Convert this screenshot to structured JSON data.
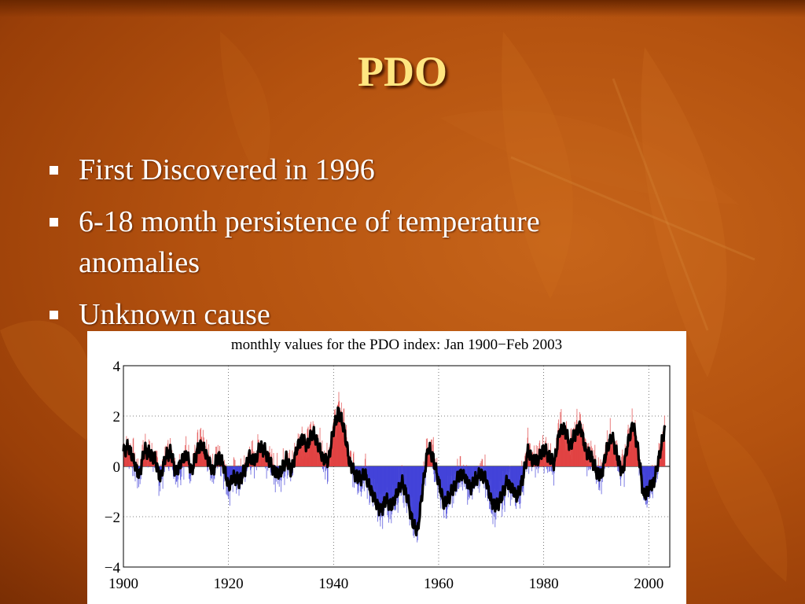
{
  "slide": {
    "title": "PDO",
    "bullets": [
      "First Discovered in 1996",
      "6-18 month persistence of temperature anomalies",
      "Unknown cause"
    ]
  },
  "colors": {
    "title": "#ffe680",
    "text": "#ffffff",
    "background": "#b4520f",
    "positive_fill": "#e04040",
    "negative_fill": "#4040d8",
    "smoothed_line": "#000000"
  },
  "chart_data": {
    "type": "area",
    "title": "monthly values for the PDO index: Jan 1900−Feb 2003",
    "xlabel": "",
    "ylabel": "",
    "xlim": [
      1900,
      2004
    ],
    "ylim": [
      -4,
      4
    ],
    "x_ticks": [
      1900,
      1920,
      1940,
      1960,
      1980,
      2000
    ],
    "y_ticks": [
      4,
      2,
      0,
      -2,
      -4
    ],
    "y_tick_labels": [
      "4",
      "2",
      "0",
      "−2",
      "−4"
    ],
    "grid": true,
    "legend": "none",
    "series": [
      {
        "values_kind": "approximate smoothed PDO index (x = year, y = index)",
        "x": [
          1900,
          1901,
          1902,
          1903,
          1904,
          1905,
          1906,
          1907,
          1908,
          1909,
          1910,
          1911,
          1912,
          1913,
          1914,
          1915,
          1916,
          1917,
          1918,
          1919,
          1920,
          1921,
          1922,
          1923,
          1924,
          1925,
          1926,
          1927,
          1928,
          1929,
          1930,
          1931,
          1932,
          1933,
          1934,
          1935,
          1936,
          1937,
          1938,
          1939,
          1940,
          1941,
          1942,
          1943,
          1944,
          1945,
          1946,
          1947,
          1948,
          1949,
          1950,
          1951,
          1952,
          1953,
          1954,
          1955,
          1956,
          1957,
          1958,
          1959,
          1960,
          1961,
          1962,
          1963,
          1964,
          1965,
          1966,
          1967,
          1968,
          1969,
          1970,
          1971,
          1972,
          1973,
          1974,
          1975,
          1976,
          1977,
          1978,
          1979,
          1980,
          1981,
          1982,
          1983,
          1984,
          1985,
          1986,
          1987,
          1988,
          1989,
          1990,
          1991,
          1992,
          1993,
          1994,
          1995,
          1996,
          1997,
          1998,
          1999,
          2000,
          2001,
          2002,
          2003
        ],
        "y": [
          0.6,
          0.8,
          0.2,
          -0.4,
          0.7,
          0.5,
          0.3,
          -0.5,
          0.4,
          0.6,
          -0.3,
          0.2,
          0.5,
          -0.2,
          0.6,
          0.9,
          0.3,
          -0.2,
          0.4,
          0.1,
          -0.8,
          -0.4,
          -0.6,
          -0.2,
          0.4,
          0.2,
          0.8,
          0.6,
          0.1,
          -0.3,
          -0.2,
          0.3,
          -0.2,
          0.7,
          1.1,
          0.8,
          1.4,
          0.9,
          0.3,
          0.2,
          1.5,
          2.2,
          1.5,
          0.2,
          -0.3,
          -0.5,
          -0.3,
          -0.9,
          -1.4,
          -1.8,
          -1.3,
          -1.6,
          -1.1,
          -0.6,
          -1.2,
          -2.2,
          -2.6,
          -0.8,
          0.8,
          0.3,
          -0.6,
          -1.5,
          -1.2,
          -0.8,
          -0.3,
          -0.4,
          -0.9,
          -0.5,
          -0.3,
          -0.5,
          -1.4,
          -1.6,
          -1.2,
          -0.6,
          -0.9,
          -1.2,
          -0.5,
          0.6,
          0.2,
          0.3,
          0.7,
          0.4,
          0.1,
          1.4,
          1.5,
          0.8,
          1.3,
          1.6,
          0.6,
          0.4,
          -0.2,
          -0.4,
          0.7,
          1.2,
          0.4,
          -0.3,
          0.9,
          1.7,
          0.6,
          -1.2,
          -0.9,
          -0.6,
          0.4,
          1.5
        ]
      }
    ]
  }
}
